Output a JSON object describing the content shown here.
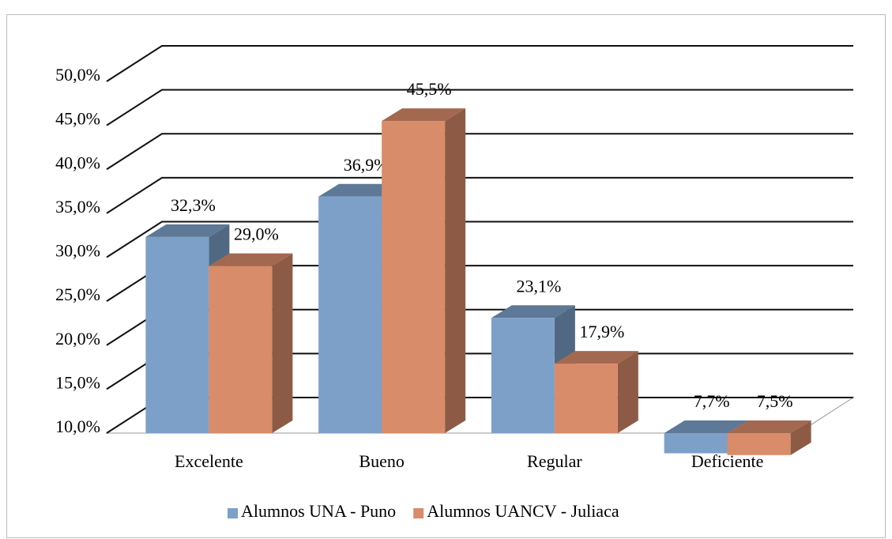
{
  "chart_data": {
    "type": "bar3d",
    "categories": [
      "Excelente",
      "Bueno",
      "Regular",
      "Deficiente"
    ],
    "series": [
      {
        "name": "Alumnos UNA - Puno",
        "color": "#7da0c9",
        "values": [
          32.3,
          36.9,
          23.1,
          7.7
        ],
        "value_labels": [
          "32,3%",
          "36,9%",
          "23,1%",
          "7,7%"
        ]
      },
      {
        "name": "Alumnos UANCV - Juliaca",
        "color": "#d98c6a",
        "values": [
          29.0,
          45.5,
          17.9,
          7.5
        ],
        "value_labels": [
          "29,0%",
          "45,5%",
          "17,9%",
          "7,5%"
        ]
      }
    ],
    "ylim": [
      10,
      50
    ],
    "yticks": [
      {
        "value": 10,
        "label": "10,0%"
      },
      {
        "value": 15,
        "label": "15,0%"
      },
      {
        "value": 20,
        "label": "20,0%"
      },
      {
        "value": 25,
        "label": "25,0%"
      },
      {
        "value": 30,
        "label": "30,0%"
      },
      {
        "value": 35,
        "label": "35,0%"
      },
      {
        "value": 40,
        "label": "40,0%"
      },
      {
        "value": 45,
        "label": "45,0%"
      },
      {
        "value": 50,
        "label": "50,0%"
      }
    ],
    "grid": true,
    "legend": "bottom"
  }
}
